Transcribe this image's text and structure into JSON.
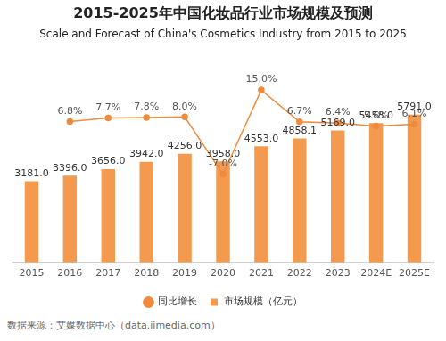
{
  "chart_data": {
    "type": "bar",
    "title": "2015-2025年中国化妆品行业市场规模及预测",
    "subtitle": "Scale and Forecast of China's Cosmetics Industry from 2015 to 2025",
    "source": "数据来源：艾媒数据中心（data.iimedia.com）",
    "categories": [
      "2015",
      "2016",
      "2017",
      "2018",
      "2019",
      "2020",
      "2021",
      "2022",
      "2023",
      "2024E",
      "2025E"
    ],
    "series": [
      {
        "name": "市场规模（亿元）",
        "type": "bar",
        "color": "#f39a4e",
        "values": [
          3181.0,
          3396.0,
          3656.0,
          3942.0,
          4256.0,
          3958.0,
          4553.0,
          4858.1,
          5169.0,
          5458.0,
          5791.0
        ],
        "value_labels": [
          "3181.0",
          "3396.0",
          "3656.0",
          "3942.0",
          "4256.0",
          "3958.0",
          "4553.0",
          "4858.1",
          "5169.0",
          "5458.0",
          "5791.0"
        ]
      },
      {
        "name": "同比增长",
        "type": "line",
        "axis": "y2",
        "color": "#f08a3c",
        "marker": "circle",
        "values": [
          null,
          6.8,
          7.7,
          7.8,
          8.0,
          -7.0,
          15.0,
          6.7,
          6.4,
          5.6,
          6.1
        ],
        "value_labels": [
          null,
          "6.8%",
          "7.7%",
          "7.8%",
          "8.0%",
          "-7.0%",
          "15.0%",
          "6.7%",
          "6.4%",
          "5.6%",
          "6.1%"
        ]
      }
    ],
    "ylim": [
      0,
      7500
    ],
    "yticks": [
      0,
      2500,
      5000,
      7500
    ],
    "y2lim": [
      -30,
      20
    ],
    "y2ticks": [
      -30,
      -20,
      -10,
      0,
      10,
      20
    ],
    "data_labels": true,
    "legend": "bottom",
    "grid": false,
    "tick_labels": "x"
  }
}
